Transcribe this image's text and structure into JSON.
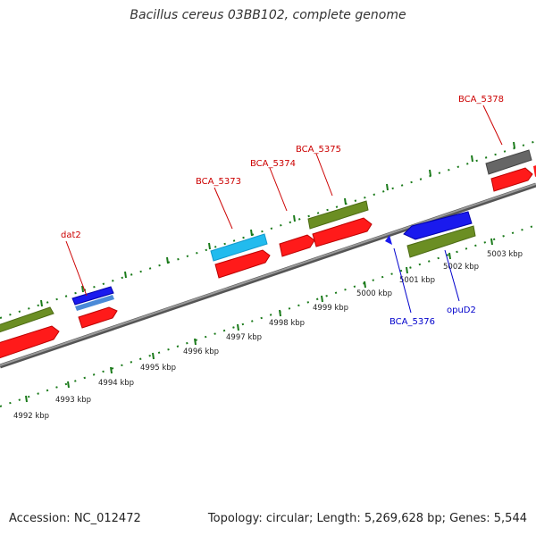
{
  "title": "Bacillus cereus 03BB102, complete genome",
  "footer": {
    "accession": "Accession: NC_012472",
    "stats": "Topology: circular; Length: 5,269,628 bp; Genes: 5,544"
  },
  "colors": {
    "forward_label": "#cc0000",
    "reverse_label": "#0000cc",
    "tick_green": "#1a7a1a",
    "backbone": "#808080",
    "red": "#ff1a1a",
    "olive": "#6b8e23",
    "blue": "#1a1aee",
    "cyan": "#22bbee",
    "gray": "#666666"
  },
  "kbp_labels": [
    "4992 kbp",
    "4993 kbp",
    "4994 kbp",
    "4995 kbp",
    "4996 kbp",
    "4997 kbp",
    "4998 kbp",
    "4999 kbp",
    "5000 kbp",
    "5001 kbp",
    "5002 kbp",
    "5003 kbp"
  ],
  "gene_labels": {
    "forward": [
      "dat2",
      "BCA_5373",
      "BCA_5374",
      "BCA_5375",
      "BCA_5378"
    ],
    "reverse": [
      "BCA_5376",
      "opuD2"
    ]
  }
}
